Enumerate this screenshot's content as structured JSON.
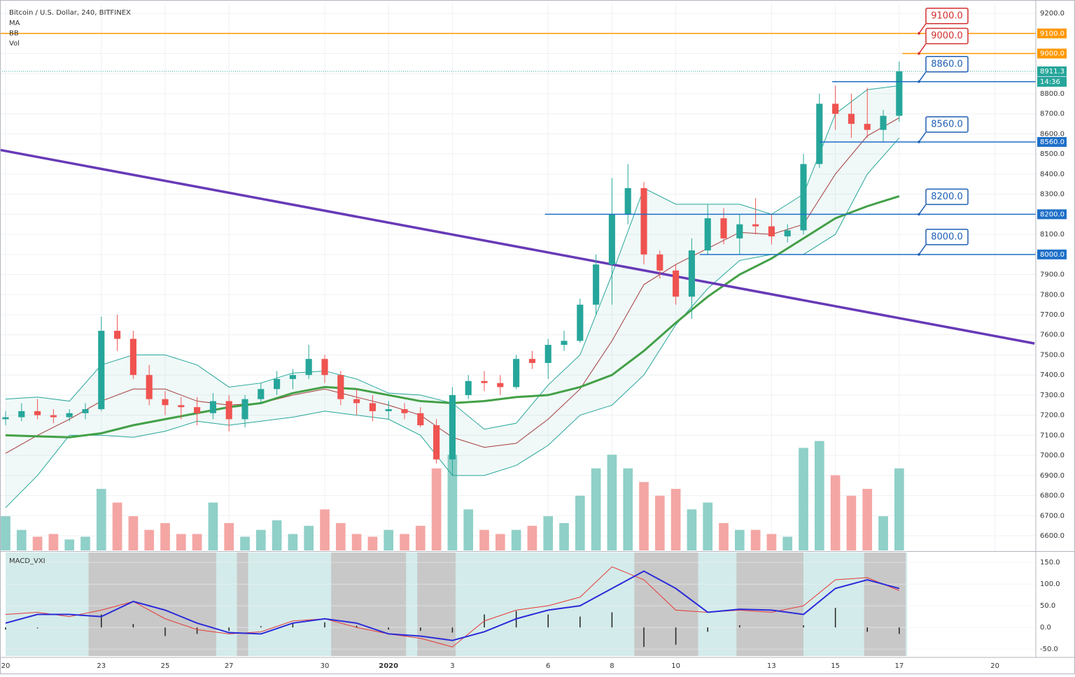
{
  "chart_data": {
    "type": "candlestick",
    "title": "Bitcoin / U.S. Dollar, 240, BITFINEX",
    "overlay_labels": [
      "MA",
      "BB",
      "Vol"
    ],
    "up_color": "#26a69a",
    "down_color": "#ef5350",
    "volume_up_color": "#8fd0c8",
    "volume_down_color": "#f4a6a4",
    "x": [
      0,
      0.5,
      1,
      1.5,
      2,
      2.5,
      3,
      3.5,
      4,
      4.5,
      5,
      5.5,
      6,
      6.5,
      7,
      7.5,
      8,
      8.5,
      9,
      9.5,
      10,
      10.5,
      11,
      11.5,
      12,
      12.5,
      13,
      13.5,
      14,
      14.5,
      15,
      15.5,
      16,
      16.5,
      17,
      17.5,
      18,
      18.5,
      19,
      19.5,
      20,
      20.5,
      21,
      21.5,
      22,
      22.5,
      23,
      23.5,
      24,
      24.5,
      25,
      25.5,
      26,
      26.5,
      27,
      27.5,
      28
    ],
    "open": [
      7180,
      7190,
      7220,
      7200,
      7190,
      7210,
      7230,
      7620,
      7580,
      7400,
      7280,
      7250,
      7240,
      7210,
      7270,
      7180,
      7280,
      7330,
      7380,
      7400,
      7480,
      7400,
      7280,
      7260,
      7220,
      7230,
      7210,
      7150,
      6980,
      7300,
      7370,
      7360,
      7340,
      7480,
      7460,
      7550,
      7570,
      7750,
      7950,
      8200,
      8330,
      8000,
      7920,
      7790,
      8020,
      8180,
      8080,
      8150,
      8140,
      8090,
      8120,
      8450,
      8750,
      8700,
      8650,
      8620,
      8690
    ],
    "high": [
      7220,
      7260,
      7280,
      7230,
      7230,
      7260,
      7690,
      7700,
      7620,
      7450,
      7320,
      7290,
      7290,
      7310,
      7300,
      7300,
      7360,
      7420,
      7430,
      7550,
      7500,
      7420,
      7330,
      7300,
      7270,
      7260,
      7240,
      7180,
      7340,
      7400,
      7420,
      7400,
      7500,
      7520,
      7580,
      7620,
      7780,
      8000,
      8380,
      8450,
      8360,
      8020,
      7950,
      8080,
      8250,
      8230,
      8200,
      8280,
      8200,
      8150,
      8500,
      8800,
      8840,
      8800,
      8830,
      8720,
      8960
    ],
    "low": [
      7150,
      7170,
      7180,
      7160,
      7170,
      7180,
      7220,
      7520,
      7380,
      7250,
      7200,
      7180,
      7150,
      7180,
      7120,
      7140,
      7260,
      7300,
      7330,
      7380,
      7360,
      7250,
      7200,
      7170,
      7180,
      7180,
      7140,
      6960,
      6900,
      7280,
      7320,
      7300,
      7330,
      7430,
      7380,
      7520,
      7560,
      7700,
      7750,
      8150,
      7950,
      7880,
      7750,
      7680,
      8000,
      8050,
      8000,
      8100,
      8050,
      8060,
      8100,
      8430,
      8620,
      8580,
      8580,
      8560,
      8660
    ],
    "close": [
      7190,
      7220,
      7200,
      7190,
      7210,
      7230,
      7620,
      7580,
      7400,
      7280,
      7250,
      7240,
      7210,
      7270,
      7180,
      7280,
      7330,
      7380,
      7400,
      7480,
      7400,
      7280,
      7260,
      7220,
      7230,
      7210,
      7150,
      6980,
      7300,
      7370,
      7360,
      7340,
      7480,
      7460,
      7550,
      7570,
      7750,
      7950,
      8200,
      8330,
      8000,
      7920,
      7790,
      8020,
      8180,
      8080,
      8150,
      8140,
      8090,
      8120,
      8450,
      8750,
      8700,
      8650,
      8620,
      8690,
      8911.3
    ],
    "volume": [
      25,
      15,
      10,
      12,
      8,
      10,
      45,
      35,
      25,
      15,
      20,
      12,
      12,
      35,
      20,
      10,
      15,
      22,
      12,
      18,
      30,
      20,
      12,
      10,
      15,
      12,
      18,
      60,
      70,
      30,
      15,
      12,
      15,
      18,
      25,
      20,
      40,
      60,
      70,
      60,
      50,
      40,
      45,
      30,
      35,
      20,
      15,
      15,
      12,
      10,
      75,
      80,
      55,
      40,
      45,
      25,
      60
    ],
    "vollim": [
      0,
      100
    ],
    "xlim": [
      -0.175,
      32.28
    ],
    "xticks": [
      {
        "value": 0,
        "label": "20"
      },
      {
        "value": 3,
        "label": "23"
      },
      {
        "value": 5,
        "label": "25"
      },
      {
        "value": 7,
        "label": "27"
      },
      {
        "value": 10,
        "label": "30"
      },
      {
        "value": 12,
        "label": "2020"
      },
      {
        "value": 14,
        "label": "3"
      },
      {
        "value": 17,
        "label": "6"
      },
      {
        "value": 19,
        "label": "8"
      },
      {
        "value": 21,
        "label": "10"
      },
      {
        "value": 24,
        "label": "13"
      },
      {
        "value": 26,
        "label": "15"
      },
      {
        "value": 28,
        "label": "17"
      },
      {
        "value": 31,
        "label": "20"
      }
    ],
    "ylim": [
      6527,
      9249
    ],
    "yticks": [
      {
        "value": 6600,
        "label": "6600.0"
      },
      {
        "value": 6700,
        "label": "6700.0"
      },
      {
        "value": 6800,
        "label": "6800.0"
      },
      {
        "value": 6900,
        "label": "6900.0"
      },
      {
        "value": 7000,
        "label": "7000.0"
      },
      {
        "value": 7100,
        "label": "7100.0"
      },
      {
        "value": 7200,
        "label": "7200.0"
      },
      {
        "value": 7300,
        "label": "7300.0"
      },
      {
        "value": 7400,
        "label": "7400.0"
      },
      {
        "value": 7500,
        "label": "7500.0"
      },
      {
        "value": 7600,
        "label": "7600.0"
      },
      {
        "value": 7700,
        "label": "7700.0"
      },
      {
        "value": 7800,
        "label": "7800.0"
      },
      {
        "value": 7900,
        "label": "7900.0"
      },
      {
        "value": 8000,
        "label": "8000.0"
      },
      {
        "value": 8100,
        "label": "8100.0"
      },
      {
        "value": 8200,
        "label": "8200.0"
      },
      {
        "value": 8300,
        "label": "8300.0"
      },
      {
        "value": 8400,
        "label": "8400.0"
      },
      {
        "value": 8500,
        "label": "8500.0"
      },
      {
        "value": 8600,
        "label": "8600.0"
      },
      {
        "value": 8700,
        "label": "8700.0"
      },
      {
        "value": 8800,
        "label": "8800.0"
      },
      {
        "value": 8900,
        "label": "8900.0"
      },
      {
        "value": 9000,
        "label": "9000.0"
      },
      {
        "value": 9100,
        "label": "9100.0"
      },
      {
        "value": 9200,
        "label": "9200.0"
      }
    ],
    "grid": true,
    "ind_x": [
      0,
      1,
      2,
      3,
      4,
      5,
      6,
      7,
      8,
      9,
      10,
      11,
      12,
      13,
      14,
      15,
      16,
      17,
      18,
      19,
      20,
      21,
      22,
      23,
      24,
      25,
      26,
      27,
      28
    ],
    "ma": {
      "color": "#43a047",
      "values": [
        7100,
        7095,
        7090,
        7110,
        7150,
        7180,
        7210,
        7240,
        7260,
        7310,
        7340,
        7330,
        7300,
        7270,
        7260,
        7270,
        7290,
        7300,
        7340,
        7400,
        7520,
        7660,
        7790,
        7900,
        7980,
        8080,
        8180,
        8240,
        8290
      ]
    },
    "bb": {
      "color": "#26a69a",
      "basis_color": "#a33b3b",
      "fill": "rgba(38,166,154,0.07)",
      "upper": [
        7280,
        7290,
        7270,
        7450,
        7500,
        7500,
        7450,
        7340,
        7360,
        7410,
        7420,
        7380,
        7310,
        7300,
        7260,
        7130,
        7160,
        7350,
        7500,
        7900,
        8330,
        8250,
        8250,
        8250,
        8200,
        8300,
        8700,
        8820,
        8840
      ],
      "basis": [
        7010,
        7100,
        7180,
        7270,
        7330,
        7330,
        7270,
        7250,
        7260,
        7300,
        7330,
        7290,
        7250,
        7200,
        7090,
        7040,
        7060,
        7180,
        7330,
        7570,
        7850,
        7950,
        8030,
        8110,
        8100,
        8150,
        8400,
        8590,
        8680
      ],
      "lower": [
        6740,
        6900,
        7100,
        7100,
        7090,
        7120,
        7170,
        7150,
        7170,
        7190,
        7220,
        7200,
        7180,
        7100,
        6900,
        6900,
        6950,
        7050,
        7200,
        7250,
        7400,
        7650,
        7830,
        7970,
        8000,
        8000,
        8100,
        8400,
        8580
      ]
    },
    "trendline": {
      "color": "#673ab7",
      "x": [
        -0.17,
        32.24
      ],
      "y": [
        8520,
        7557
      ]
    },
    "levels": [
      {
        "value": 9100,
        "label": "9100.0",
        "start": -0.175,
        "color": "#ff9800",
        "callout": "#d32f2f"
      },
      {
        "value": 9000,
        "label": "9000.0",
        "start": 28.1,
        "color": "#ff9800",
        "callout": "#d32f2f"
      },
      {
        "value": 8860,
        "label": "8860.0",
        "start": 25.9,
        "color": "#1e6fc8",
        "callout": "#1e5fb4"
      },
      {
        "value": 8560,
        "label": "8560.0",
        "start": 25.5,
        "color": "#1e6fc8",
        "callout": "#1e5fb4"
      },
      {
        "value": 8200,
        "label": "8200.0",
        "start": 16.9,
        "color": "#1e6fc8",
        "callout": "#1e5fb4"
      },
      {
        "value": 8000,
        "label": "8000.0",
        "start": 21.75,
        "color": "#1e6fc8",
        "callout": "#1e5fb4"
      }
    ],
    "last": {
      "value": 8911.3,
      "countdown": "14:36",
      "color": "#26a69a"
    },
    "macd": {
      "label": "MACD_VXI",
      "ylim": [
        -66,
        173
      ],
      "yticks": [
        {
          "value": 150,
          "label": "150.0"
        },
        {
          "value": 100,
          "label": "100.0"
        },
        {
          "value": 50,
          "label": "50.0"
        },
        {
          "value": 0,
          "label": "0.0"
        },
        {
          "value": -50,
          "label": "-50.0"
        }
      ],
      "macd": {
        "color": "#2b2bd9",
        "values": [
          10,
          30,
          30,
          25,
          60,
          40,
          10,
          -12,
          -15,
          10,
          20,
          10,
          -15,
          -20,
          -30,
          -10,
          20,
          40,
          50,
          90,
          130,
          90,
          35,
          42,
          40,
          30,
          90,
          110,
          90
        ]
      },
      "signal": {
        "color": "#e53935",
        "values": [
          30,
          35,
          25,
          40,
          60,
          20,
          -5,
          -15,
          -10,
          15,
          20,
          0,
          -15,
          -25,
          -45,
          15,
          40,
          50,
          70,
          140,
          110,
          40,
          35,
          40,
          35,
          50,
          110,
          115,
          85
        ]
      },
      "hist": [
        -5,
        -2,
        0,
        30,
        8,
        -20,
        -15,
        -8,
        3,
        10,
        12,
        4,
        -5,
        -8,
        -12,
        30,
        38,
        30,
        25,
        35,
        -45,
        -40,
        -10,
        5,
        0,
        5,
        45,
        -10,
        -15
      ],
      "bg_color": "#d3ebea",
      "zone_color": "#c8c8c8",
      "zones": [
        [
          2.6,
          6.6
        ],
        [
          7.25,
          7.6
        ],
        [
          10.2,
          12.55
        ],
        [
          12.9,
          14.1
        ],
        [
          19.7,
          21.7
        ],
        [
          22.9,
          25.0
        ],
        [
          26.9,
          28.2
        ]
      ]
    }
  }
}
